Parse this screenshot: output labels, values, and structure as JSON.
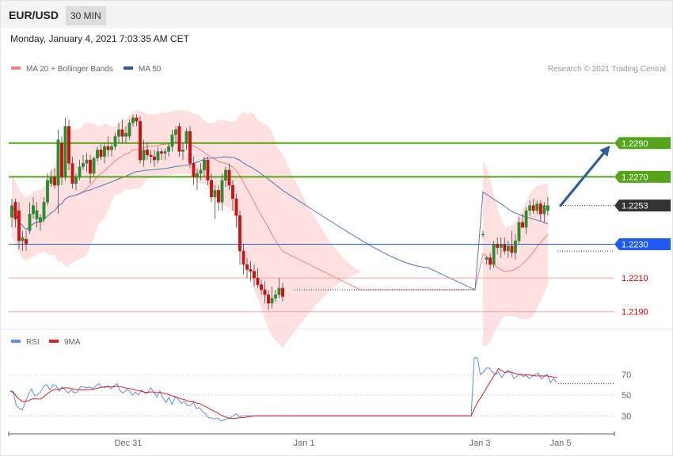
{
  "header": {
    "symbol": "EUR/USD",
    "timeframe": "30 MIN"
  },
  "datetime": "Monday, January 4, 2021 7:03:35 AM CET",
  "colors": {
    "up": "#2e8b2e",
    "down": "#cc1111",
    "band_fill": "#ffe0e0",
    "ma20": "#f08080",
    "ma50": "#5577bb",
    "resistance": "#55a51c",
    "current": "#333333",
    "pivot": "#1f5bf0",
    "support": "#f5a3a3",
    "support_text": "#cc0000",
    "arrow": "#2f5f9a",
    "rsi": "#5b8def",
    "rsi_ma": "#e02020"
  },
  "chart_data": [
    {
      "type": "candlestick",
      "legend": [
        {
          "label": "MA 20 + Bollinger Bands",
          "color": "#f08080"
        },
        {
          "label": "MA 50",
          "color": "#2e5c9a"
        }
      ],
      "legend_placement": "top-left",
      "credit": "Research © 2021 Trading Central",
      "ylim": [
        1.218,
        1.2335
      ],
      "candles": [
        [
          1.2246,
          1.2257,
          1.224,
          1.2253
        ],
        [
          1.2255,
          1.2257,
          1.224,
          1.2245
        ],
        [
          1.225,
          1.2255,
          1.2227,
          1.2232
        ],
        [
          1.2232,
          1.2238,
          1.2226,
          1.2234
        ],
        [
          1.2233,
          1.2238,
          1.2226,
          1.223
        ],
        [
          1.2238,
          1.2255,
          1.2236,
          1.2248
        ],
        [
          1.2248,
          1.2258,
          1.2245,
          1.2253
        ],
        [
          1.2245,
          1.2255,
          1.224,
          1.225
        ],
        [
          1.2243,
          1.2248,
          1.2238,
          1.2246
        ],
        [
          1.2245,
          1.2258,
          1.2243,
          1.2255
        ],
        [
          1.2255,
          1.2272,
          1.2253,
          1.2268
        ],
        [
          1.2266,
          1.2274,
          1.2264,
          1.227
        ],
        [
          1.227,
          1.2275,
          1.2263,
          1.2265
        ],
        [
          1.2265,
          1.2298,
          1.2248,
          1.2292
        ],
        [
          1.229,
          1.2294,
          1.2265,
          1.227
        ],
        [
          1.227,
          1.2305,
          1.2268,
          1.23
        ],
        [
          1.23,
          1.2304,
          1.2274,
          1.2278
        ],
        [
          1.2278,
          1.2282,
          1.2263,
          1.2266
        ],
        [
          1.2266,
          1.2272,
          1.2262,
          1.227
        ],
        [
          1.227,
          1.228,
          1.2268,
          1.2276
        ],
        [
          1.2276,
          1.2283,
          1.2274,
          1.2278
        ],
        [
          1.2278,
          1.2284,
          1.2273,
          1.228
        ],
        [
          1.228,
          1.2283,
          1.2266,
          1.2272
        ],
        [
          1.2272,
          1.2282,
          1.227,
          1.2281
        ],
        [
          1.2281,
          1.2288,
          1.2279,
          1.2286
        ],
        [
          1.2286,
          1.229,
          1.228,
          1.2282
        ],
        [
          1.2282,
          1.229,
          1.2278,
          1.2288
        ],
        [
          1.2288,
          1.2294,
          1.2282,
          1.2286
        ],
        [
          1.2286,
          1.229,
          1.2282,
          1.2288
        ],
        [
          1.2288,
          1.2296,
          1.2286,
          1.2294
        ],
        [
          1.2294,
          1.2302,
          1.229,
          1.2298
        ],
        [
          1.2298,
          1.2304,
          1.229,
          1.2294
        ],
        [
          1.2294,
          1.23,
          1.229,
          1.2296
        ],
        [
          1.2294,
          1.2304,
          1.2292,
          1.2302
        ],
        [
          1.2302,
          1.2307,
          1.23,
          1.2305
        ],
        [
          1.2305,
          1.2307,
          1.23,
          1.2303
        ],
        [
          1.2303,
          1.2306,
          1.2278,
          1.228
        ],
        [
          1.228,
          1.2292,
          1.2276,
          1.2286
        ],
        [
          1.2286,
          1.229,
          1.228,
          1.2283
        ],
        [
          1.2283,
          1.2286,
          1.2278,
          1.2282
        ],
        [
          1.2282,
          1.2286,
          1.2276,
          1.228
        ],
        [
          1.228,
          1.2288,
          1.2278,
          1.2285
        ],
        [
          1.2285,
          1.2287,
          1.228,
          1.2284
        ],
        [
          1.2284,
          1.2287,
          1.228,
          1.2285
        ],
        [
          1.2285,
          1.229,
          1.2282,
          1.2288
        ],
        [
          1.2288,
          1.2298,
          1.2285,
          1.2295
        ],
        [
          1.2295,
          1.23,
          1.229,
          1.2298
        ],
        [
          1.23,
          1.2302,
          1.2282,
          1.2285
        ],
        [
          1.2285,
          1.229,
          1.228,
          1.2286
        ],
        [
          1.229,
          1.2299,
          1.2286,
          1.2297
        ],
        [
          1.2297,
          1.23,
          1.2275,
          1.2278
        ],
        [
          1.2278,
          1.2282,
          1.2265,
          1.227
        ],
        [
          1.227,
          1.2275,
          1.2262,
          1.2272
        ],
        [
          1.2272,
          1.2278,
          1.2268,
          1.2274
        ],
        [
          1.2274,
          1.2282,
          1.227,
          1.228
        ],
        [
          1.228,
          1.2282,
          1.2265,
          1.2268
        ],
        [
          1.2268,
          1.2272,
          1.2255,
          1.2258
        ],
        [
          1.2258,
          1.2265,
          1.2245,
          1.2262
        ],
        [
          1.2262,
          1.2265,
          1.225,
          1.2255
        ],
        [
          1.2255,
          1.2272,
          1.225,
          1.2268
        ],
        [
          1.2268,
          1.2276,
          1.2264,
          1.2274
        ],
        [
          1.2274,
          1.2278,
          1.2262,
          1.2265
        ],
        [
          1.2265,
          1.2268,
          1.225,
          1.2257
        ],
        [
          1.2257,
          1.226,
          1.224,
          1.2247
        ],
        [
          1.2247,
          1.225,
          1.2218,
          1.2226
        ],
        [
          1.2226,
          1.223,
          1.2212,
          1.2218
        ],
        [
          1.2218,
          1.2222,
          1.221,
          1.2215
        ],
        [
          1.2215,
          1.222,
          1.2208,
          1.2214
        ],
        [
          1.2214,
          1.2218,
          1.2205,
          1.221
        ],
        [
          1.221,
          1.2216,
          1.2204,
          1.2206
        ],
        [
          1.2206,
          1.2209,
          1.22,
          1.2203
        ],
        [
          1.2203,
          1.2208,
          1.2195,
          1.22
        ],
        [
          1.22,
          1.2203,
          1.2191,
          1.2195
        ],
        [
          1.2195,
          1.2205,
          1.2192,
          1.2198
        ],
        [
          1.2198,
          1.2203,
          1.2196,
          1.22
        ],
        [
          1.22,
          1.221,
          1.2198,
          1.2204
        ],
        [
          1.2204,
          1.2207,
          1.2196,
          1.2199
        ],
        [
          1.2236,
          1.2238,
          1.2234,
          1.2236
        ],
        [
          1.2221,
          1.2223,
          1.2218,
          1.2222
        ],
        [
          1.2222,
          1.2225,
          1.2215,
          1.2218
        ],
        [
          1.2218,
          1.2232,
          1.2216,
          1.223
        ],
        [
          1.223,
          1.2234,
          1.2224,
          1.2228
        ],
        [
          1.2228,
          1.2234,
          1.2222,
          1.223
        ],
        [
          1.223,
          1.2234,
          1.2224,
          1.2226
        ],
        [
          1.2226,
          1.2232,
          1.2222,
          1.2229
        ],
        [
          1.2229,
          1.2238,
          1.2222,
          1.2225
        ],
        [
          1.2225,
          1.2236,
          1.2221,
          1.2232
        ],
        [
          1.2232,
          1.2246,
          1.223,
          1.2243
        ],
        [
          1.2243,
          1.2248,
          1.224,
          1.224
        ],
        [
          1.224,
          1.2252,
          1.2236,
          1.225
        ],
        [
          1.225,
          1.2256,
          1.2247,
          1.2253
        ],
        [
          1.2253,
          1.2257,
          1.2248,
          1.225
        ],
        [
          1.225,
          1.2256,
          1.2248,
          1.2254
        ],
        [
          1.2254,
          1.2256,
          1.2244,
          1.2248
        ],
        [
          1.2248,
          1.2255,
          1.2243,
          1.2253
        ],
        [
          1.225,
          1.2258,
          1.2247,
          1.2253
        ]
      ],
      "levels": [
        {
          "value": 1.229,
          "label": "1.2290",
          "role": "resistance"
        },
        {
          "value": 1.227,
          "label": "1.2270",
          "role": "resistance"
        },
        {
          "value": 1.2253,
          "label": "1.2253",
          "role": "current"
        },
        {
          "value": 1.223,
          "label": "1.2230",
          "role": "pivot"
        },
        {
          "value": 1.221,
          "label": "1.2210",
          "role": "support"
        },
        {
          "value": 1.219,
          "label": "1.2190",
          "role": "support"
        }
      ],
      "forecast_arrow": {
        "from": 1.2253,
        "to": 1.229,
        "direction": "up"
      }
    },
    {
      "type": "line",
      "legend": [
        {
          "label": "RSI",
          "color": "#5b8def"
        },
        {
          "label": "9MA",
          "color": "#e02020"
        }
      ],
      "ylim": [
        15,
        95
      ],
      "yticks": [
        "70",
        "50",
        "30"
      ],
      "ytick_values": [
        70,
        50,
        30
      ],
      "x_labels": [
        "Dec 31",
        "Jan 1",
        "Jan 3",
        "Jan 5"
      ],
      "rsi": [
        54,
        52,
        40,
        37,
        36,
        44,
        51,
        56,
        49,
        51,
        53,
        59,
        60,
        55,
        60,
        59,
        54,
        58,
        55,
        52,
        55,
        52,
        53,
        58,
        58,
        57,
        58,
        56,
        59,
        61,
        58,
        57,
        59,
        56,
        59,
        61,
        54,
        52,
        55,
        54,
        50,
        53,
        50,
        55,
        52,
        52,
        57,
        53,
        48,
        54,
        47,
        43,
        48,
        41,
        48,
        46,
        42,
        44,
        40,
        40,
        43,
        37,
        38,
        34,
        32,
        28,
        28,
        27,
        28,
        25,
        26,
        27,
        28,
        30,
        32,
        29,
        30,
        30,
        30,
        30,
        30,
        30,
        30,
        30,
        30,
        30,
        30,
        30,
        30,
        30,
        30,
        30,
        30,
        30,
        30,
        30,
        30,
        30,
        30,
        30,
        30,
        30,
        30,
        30,
        30,
        30,
        30,
        30,
        30,
        30,
        30,
        30,
        30,
        30,
        30,
        30,
        30,
        30,
        30,
        30,
        30,
        30,
        30,
        30,
        30,
        30,
        30,
        30,
        30,
        30,
        30,
        30,
        30,
        30,
        30,
        30,
        30,
        30,
        30,
        30,
        30,
        30,
        30,
        30,
        30,
        30,
        30,
        30,
        30,
        30,
        30,
        30,
        86,
        86,
        70,
        72,
        76,
        76,
        72,
        70,
        72,
        67,
        71,
        74,
        72,
        66,
        68,
        70,
        68,
        69,
        66,
        68,
        70,
        71,
        66,
        68,
        70,
        62,
        66,
        62
      ]
    }
  ]
}
